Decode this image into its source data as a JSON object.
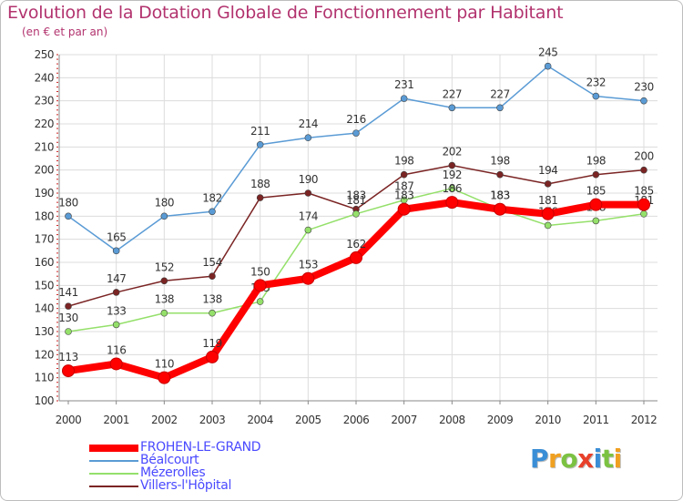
{
  "header": {
    "title": "Evolution de la Dotation Globale de Fonctionnement par Habitant",
    "subtitle": "(en € et par an)"
  },
  "chart_data": {
    "type": "line",
    "title": "Evolution de la Dotation Globale de Fonctionnement par Habitant",
    "subtitle": "(en € et par an)",
    "xlabel": "",
    "ylabel": "",
    "categories": [
      "2000",
      "2001",
      "2002",
      "2003",
      "2004",
      "2005",
      "2006",
      "2007",
      "2008",
      "2009",
      "2010",
      "2011",
      "2012"
    ],
    "ylim": [
      100,
      250
    ],
    "yticks": [
      100,
      110,
      120,
      130,
      140,
      150,
      160,
      170,
      180,
      190,
      200,
      210,
      220,
      230,
      240,
      250
    ],
    "grid": true,
    "legend_position": "bottom-left",
    "series": [
      {
        "name": "Béalcourt",
        "color": "#5a9bd5",
        "values": [
          180,
          165,
          180,
          182,
          211,
          214,
          216,
          231,
          227,
          227,
          245,
          232,
          230
        ],
        "labels": [
          "180",
          "165",
          "180",
          "182",
          "211",
          "214",
          "216",
          "231",
          "227",
          "227",
          "245",
          "232",
          "230"
        ]
      },
      {
        "name": "Villers-l'Hôpital",
        "color": "#7b2424",
        "values": [
          141,
          147,
          152,
          154,
          188,
          190,
          183,
          198,
          202,
          198,
          194,
          198,
          200
        ],
        "labels": [
          "141",
          "147",
          "152",
          "154",
          "188",
          "190",
          "183",
          "198",
          "202",
          "198",
          "194",
          "198",
          "200"
        ]
      },
      {
        "name": "Mézerolles",
        "color": "#94e06a",
        "values": [
          130,
          133,
          138,
          138,
          143,
          174,
          181,
          187,
          192,
          183,
          176,
          178,
          181
        ],
        "labels": [
          "130",
          "133",
          "138",
          "138",
          "143",
          "174",
          "181",
          "187",
          "192",
          "183",
          "176",
          "178",
          "181"
        ]
      },
      {
        "name": "FROHEN-LE-GRAND",
        "color": "#ff0000",
        "values": [
          113,
          116,
          110,
          119,
          150,
          153,
          162,
          183,
          186,
          183,
          181,
          185,
          185
        ],
        "labels": [
          "113",
          "116",
          "110",
          "119",
          "150",
          "153",
          "162",
          "183",
          "186",
          "183",
          "181",
          "185",
          "185"
        ]
      }
    ]
  },
  "legend": {
    "items": [
      {
        "label": "FROHEN-LE-GRAND",
        "color": "#ff0000"
      },
      {
        "label": "Béalcourt",
        "color": "#5a9bd5"
      },
      {
        "label": "Mézerolles",
        "color": "#94e06a"
      },
      {
        "label": "Villers-l'Hôpital",
        "color": "#7b2424"
      }
    ]
  },
  "logo": {
    "letters": [
      "P",
      "r",
      "o",
      "x",
      "i",
      "t",
      "i"
    ],
    "colors": [
      "#3a8ed6",
      "#f0a020",
      "#7cc242",
      "#e8402a",
      "#3a8ed6",
      "#7cc242",
      "#f0a020"
    ]
  }
}
